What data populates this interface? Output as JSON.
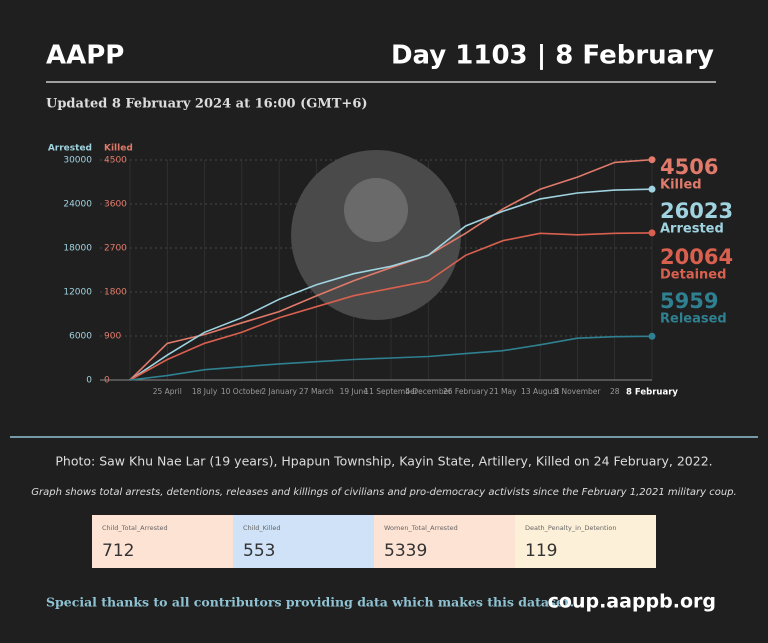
{
  "header": {
    "org": "AAPP",
    "day": "Day 1103 | 8 February",
    "updated": "Updated 8 February 2024 at 16:00 (GMT+6)"
  },
  "chart_data": {
    "type": "line",
    "y_label": "Arrested",
    "y2_label": "Killed",
    "categories": [
      null,
      "25 April",
      "18 July",
      "10 October",
      "2 January",
      "27 March",
      "19 June",
      "11 September",
      "4 December",
      "26 February",
      "21 May",
      "13 August",
      "5 November",
      "28",
      "8 February"
    ],
    "ylim": [
      0,
      30000
    ],
    "yticks": [
      0,
      6000,
      12000,
      18000,
      24000,
      30000
    ],
    "y2lim": [
      0,
      4500
    ],
    "y2ticks": [
      0,
      900,
      1800,
      2700,
      3600,
      4500
    ],
    "grid": true,
    "series": [
      {
        "name": "Killed",
        "color": "#e07a6a",
        "axis": "y2",
        "values": [
          0,
          750,
          930,
          1170,
          1400,
          1720,
          2030,
          2300,
          2550,
          3000,
          3500,
          3900,
          4150,
          4450,
          4506
        ]
      },
      {
        "name": "Arrested",
        "color": "#9fd3e0",
        "values": [
          0,
          3400,
          6500,
          8500,
          11000,
          13000,
          14500,
          15500,
          17000,
          21000,
          23000,
          24700,
          25500,
          25900,
          26023
        ]
      },
      {
        "name": "Detained",
        "color": "#d9604f",
        "values": [
          0,
          2800,
          5000,
          6500,
          8500,
          10000,
          11500,
          12500,
          13500,
          17000,
          19000,
          20000,
          19800,
          20000,
          20064
        ]
      },
      {
        "name": "Released",
        "color": "#2f8090",
        "values": [
          0,
          600,
          1400,
          1800,
          2200,
          2500,
          2800,
          3000,
          3200,
          3600,
          4000,
          4800,
          5700,
          5900,
          5959
        ]
      }
    ]
  },
  "caption": "Photo: Saw Khu Nae Lar (19 years), Hpapun Township, Kayin State, Artillery, Killed on 24 February, 2022.",
  "note": "Graph shows total arrests, detentions, releases and killings of civilians and pro-democracy activists since the February 1,2021 military coup.",
  "stats": [
    {
      "label": "Child_Total_Arrested",
      "value": "712"
    },
    {
      "label": "Child_Killed",
      "value": "553"
    },
    {
      "label": "Women_Total_Arrested",
      "value": "5339"
    },
    {
      "label": "Death_Penalty_in_Detention",
      "value": "119"
    }
  ],
  "footer": {
    "thanks": "Special thanks to all contributors providing data which makes this dataset.",
    "url": "coup.aappb.org"
  }
}
